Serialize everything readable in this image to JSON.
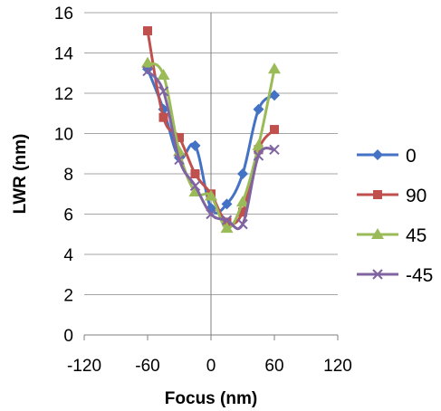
{
  "chart_data": {
    "type": "line",
    "title": "",
    "xlabel": "Focus (nm)",
    "ylabel": "LWR (nm)",
    "xlim": [
      -120,
      120
    ],
    "ylim": [
      0,
      16
    ],
    "x_ticks": [
      -120,
      -60,
      0,
      60,
      120
    ],
    "y_ticks": [
      0,
      2,
      4,
      6,
      8,
      10,
      12,
      14,
      16
    ],
    "grid": "horizontal",
    "legend_position": "right",
    "series": [
      {
        "name": "0",
        "color": "#4472C4",
        "marker": "diamond",
        "x": [
          -60,
          -45,
          -30,
          -15,
          0,
          15,
          30,
          45,
          60
        ],
        "y": [
          13.2,
          11.2,
          8.8,
          9.4,
          6.3,
          6.5,
          8.0,
          11.2,
          11.9
        ]
      },
      {
        "name": "90",
        "color": "#C0504D",
        "marker": "square",
        "x": [
          -60,
          -45,
          -30,
          -15,
          0,
          15,
          30,
          45,
          60
        ],
        "y": [
          15.1,
          10.8,
          9.8,
          8.0,
          7.0,
          5.6,
          6.1,
          9.2,
          10.2
        ]
      },
      {
        "name": "45",
        "color": "#9BBB59",
        "marker": "triangle",
        "x": [
          -60,
          -45,
          -30,
          -15,
          0,
          15,
          30,
          45,
          60
        ],
        "y": [
          13.5,
          12.9,
          9.1,
          7.1,
          6.9,
          5.3,
          6.6,
          9.4,
          13.2
        ]
      },
      {
        "name": "-45",
        "color": "#8064A2",
        "marker": "x",
        "x": [
          -60,
          -45,
          -30,
          -15,
          0,
          15,
          30,
          45,
          60
        ],
        "y": [
          13.1,
          12.1,
          8.7,
          7.4,
          6.0,
          5.7,
          5.5,
          8.9,
          9.2
        ]
      }
    ]
  }
}
